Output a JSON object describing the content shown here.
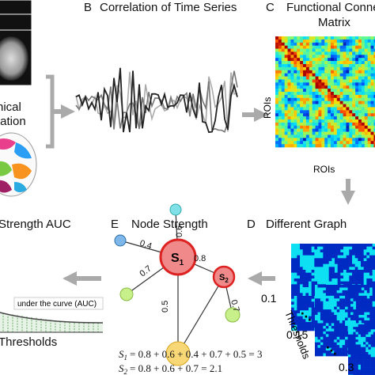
{
  "panel_a": {
    "caption_lines": [
      "nical",
      "tation"
    ]
  },
  "panel_b": {
    "letter": "B",
    "title": "Correlation of Time Series"
  },
  "panel_c": {
    "letter": "C",
    "title_lines": [
      "Functional Conne",
      "Matrix"
    ],
    "y_label": "ROIs",
    "x_label": "ROIs"
  },
  "panel_d": {
    "letter": "D",
    "title": "Different Graph",
    "thresholds": [
      "0.1",
      "0.15",
      "0.3"
    ],
    "axis_label": "Thresholds"
  },
  "panel_e": {
    "letter": "E",
    "title": "Node Strength",
    "nodes": [
      {
        "symbol": "S",
        "sub": "1"
      },
      {
        "symbol": "S",
        "sub": "2"
      }
    ],
    "edge_weights": [
      "0.4",
      "0.6",
      "0.8",
      "0.7",
      "0.5",
      "0.7"
    ],
    "equations": [
      {
        "symbol": "S",
        "sub": "1",
        "rhs": "= 0.8 + 0.6 + 0.4 + 0.7 + 0.5 = 3"
      },
      {
        "symbol": "S",
        "sub": "2",
        "rhs": "= 0.8 + 0.6 + 0.7 = 2.1"
      }
    ]
  },
  "panel_f": {
    "title": "Strength AUC",
    "area_label": "under the curve (AUC)",
    "x_label": "Thresholds"
  }
}
